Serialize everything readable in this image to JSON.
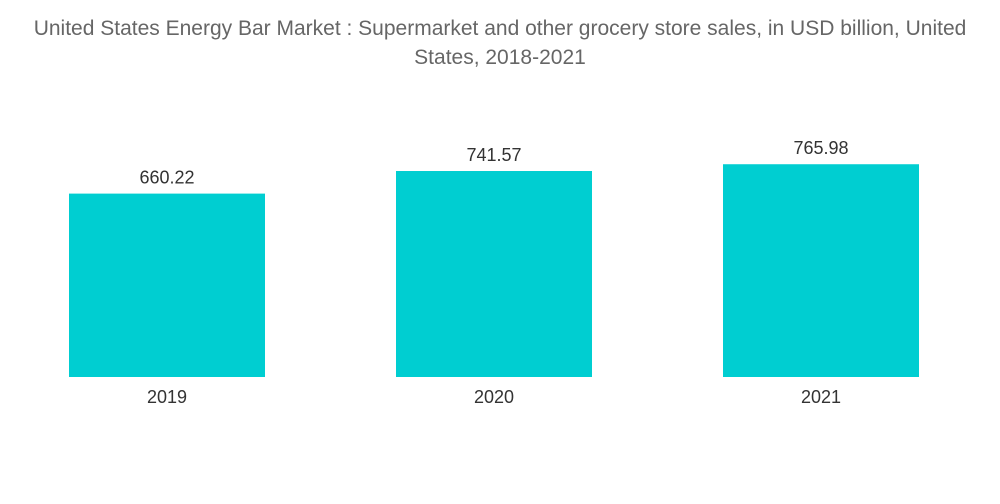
{
  "chart_data": {
    "type": "bar",
    "title": "United States Energy Bar Market : Supermarket and other grocery store sales, in USD billion, United States, 2018-2021",
    "categories": [
      "2019",
      "2020",
      "2021"
    ],
    "values": [
      660.22,
      741.57,
      765.98
    ],
    "value_labels": [
      "660.22",
      "741.57",
      "765.98"
    ],
    "xlabel": "",
    "ylabel": "",
    "ylim": [
      0,
      900
    ],
    "grid": false,
    "legend": "none",
    "colors": {
      "bar": "#00CED1",
      "title": "#666666",
      "label": "#333333"
    }
  }
}
